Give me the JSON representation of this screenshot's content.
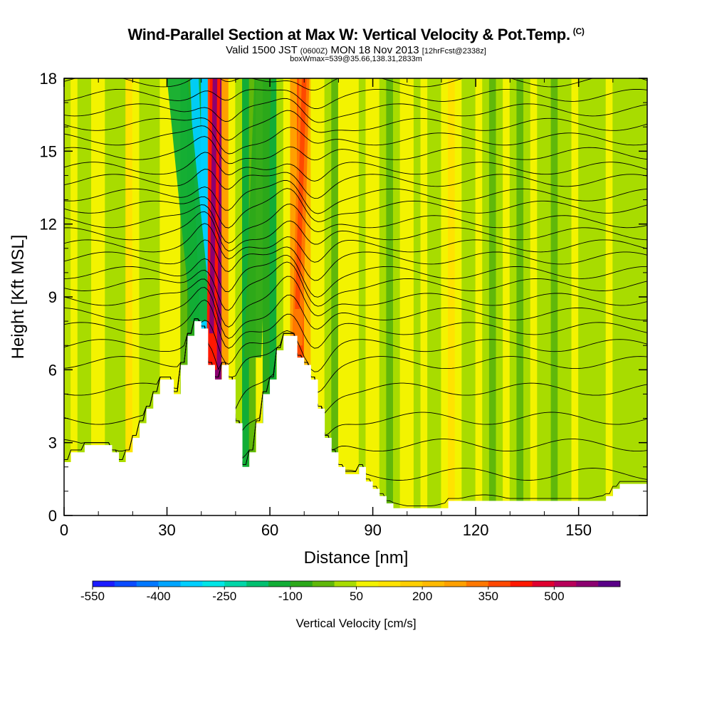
{
  "chart_data": {
    "type": "heatmap",
    "title": "Wind-Parallel Section at Max W: Vertical Velocity & Pot.Temp.",
    "copyright": "(C)",
    "subtitle_main_a": "Valid 1500 JST",
    "subtitle_utc": "(0600Z)",
    "subtitle_main_b": "MON 18 Nov 2013",
    "subtitle_fcst": "[12hrFcst@2338z]",
    "subtitle2": "boxWmax=539@35.66,138.31,2833m",
    "xlabel": "Distance [nm]",
    "ylabel": "Height [Kft MSL]",
    "xlim": [
      0,
      170
    ],
    "ylim": [
      0,
      18
    ],
    "xticks": [
      0,
      30,
      60,
      90,
      120,
      150
    ],
    "yticks": [
      0,
      3,
      6,
      9,
      12,
      15,
      18
    ],
    "colorbar": {
      "title": "Vertical Velocity [cm/s]",
      "labels": [
        "-550",
        "-400",
        "-250",
        "-100",
        "50",
        "200",
        "350",
        "500"
      ],
      "colors": [
        "#1b1bff",
        "#0a4bff",
        "#0078ff",
        "#00a5ff",
        "#00cfff",
        "#00e6e6",
        "#00d6a8",
        "#00c070",
        "#11ad36",
        "#2ba81a",
        "#60b80a",
        "#a8dc00",
        "#f3f300",
        "#ffe300",
        "#ffcf00",
        "#ffba00",
        "#ffa000",
        "#ff7800",
        "#ff4800",
        "#ff1800",
        "#e00030",
        "#b8005a",
        "#8c0070",
        "#5a0088"
      ]
    },
    "columns": [
      {
        "x": 0,
        "terrain": 2.2,
        "w": "#b6e000"
      },
      {
        "x": 2,
        "terrain": 2.6,
        "w": "#f3f300"
      },
      {
        "x": 4,
        "terrain": 2.6,
        "w": "#a8dc00"
      },
      {
        "x": 6,
        "terrain": 2.9,
        "w": "#a8dc00"
      },
      {
        "x": 8,
        "terrain": 2.9,
        "w": "#f3f300"
      },
      {
        "x": 10,
        "terrain": 2.9,
        "w": "#f3f300"
      },
      {
        "x": 12,
        "terrain": 2.9,
        "w": "#a8dc00"
      },
      {
        "x": 14,
        "terrain": 2.6,
        "w": "#a8dc00"
      },
      {
        "x": 16,
        "terrain": 2.2,
        "w": "#a8dc00"
      },
      {
        "x": 18,
        "terrain": 2.6,
        "w": "#ffe300"
      },
      {
        "x": 20,
        "terrain": 3.2,
        "w": "#f3f300"
      },
      {
        "x": 22,
        "terrain": 3.8,
        "w": "#a8dc00"
      },
      {
        "x": 24,
        "terrain": 4.4,
        "w": "#a8dc00"
      },
      {
        "x": 26,
        "terrain": 5.0,
        "w": "#a8dc00"
      },
      {
        "x": 28,
        "terrain": 5.6,
        "w": "#f3f300"
      },
      {
        "x": 30,
        "terrain": 5.6,
        "w": "#f3f300"
      },
      {
        "x": 32,
        "terrain": 5.0,
        "w": "#f3f300"
      },
      {
        "x": 34,
        "terrain": 6.2,
        "w": "#60b80a"
      },
      {
        "x": 36,
        "terrain": 7.4,
        "w": "#2ba81a"
      },
      {
        "x": 38,
        "terrain": 8.0,
        "w": "#11ad36"
      },
      {
        "x": 40,
        "terrain": 7.7,
        "w": "#00cfff"
      },
      {
        "x": 42,
        "terrain": 6.2,
        "w": "#ff4800"
      },
      {
        "x": 44,
        "terrain": 5.6,
        "w": "#8c0070"
      },
      {
        "x": 46,
        "terrain": 6.2,
        "w": "#ffa000"
      },
      {
        "x": 48,
        "terrain": 5.6,
        "w": "#f3f300"
      },
      {
        "x": 50,
        "terrain": 3.8,
        "w": "#a8dc00"
      },
      {
        "x": 52,
        "terrain": 2.0,
        "w": "#11ad36"
      },
      {
        "x": 54,
        "terrain": 2.6,
        "w": "#60b80a"
      },
      {
        "x": 56,
        "terrain": 3.8,
        "w": "#f3f300"
      },
      {
        "x": 58,
        "terrain": 5.0,
        "w": "#2ba81a"
      },
      {
        "x": 60,
        "terrain": 5.6,
        "w": "#11ad36"
      },
      {
        "x": 62,
        "terrain": 6.8,
        "w": "#a8dc00"
      },
      {
        "x": 64,
        "terrain": 7.4,
        "w": "#f3f300"
      },
      {
        "x": 66,
        "terrain": 7.4,
        "w": "#ffa000"
      },
      {
        "x": 68,
        "terrain": 6.5,
        "w": "#ff4800"
      },
      {
        "x": 70,
        "terrain": 6.2,
        "w": "#ffba00"
      },
      {
        "x": 72,
        "terrain": 5.6,
        "w": "#f3f300"
      },
      {
        "x": 74,
        "terrain": 4.4,
        "w": "#f3f300"
      },
      {
        "x": 76,
        "terrain": 3.2,
        "w": "#a8dc00"
      },
      {
        "x": 78,
        "terrain": 2.6,
        "w": "#60b80a"
      },
      {
        "x": 80,
        "terrain": 2.0,
        "w": "#f3f300"
      },
      {
        "x": 82,
        "terrain": 1.7,
        "w": "#f3f300"
      },
      {
        "x": 84,
        "terrain": 1.7,
        "w": "#f3f300"
      },
      {
        "x": 86,
        "terrain": 2.0,
        "w": "#a8dc00"
      },
      {
        "x": 88,
        "terrain": 1.4,
        "w": "#f3f300"
      },
      {
        "x": 90,
        "terrain": 1.1,
        "w": "#f3f300"
      },
      {
        "x": 92,
        "terrain": 0.8,
        "w": "#a8dc00"
      },
      {
        "x": 94,
        "terrain": 0.5,
        "w": "#60b80a"
      },
      {
        "x": 96,
        "terrain": 0.3,
        "w": "#a8dc00"
      },
      {
        "x": 98,
        "terrain": 0.3,
        "w": "#f3f300"
      },
      {
        "x": 100,
        "terrain": 0.3,
        "w": "#f3f300"
      },
      {
        "x": 102,
        "terrain": 0.3,
        "w": "#a8dc00"
      },
      {
        "x": 104,
        "terrain": 0.3,
        "w": "#f3f300"
      },
      {
        "x": 106,
        "terrain": 0.3,
        "w": "#a8dc00"
      },
      {
        "x": 108,
        "terrain": 0.3,
        "w": "#a8dc00"
      },
      {
        "x": 110,
        "terrain": 0.3,
        "w": "#f3f300"
      },
      {
        "x": 112,
        "terrain": 0.6,
        "w": "#ffe300"
      },
      {
        "x": 114,
        "terrain": 0.6,
        "w": "#f3f300"
      },
      {
        "x": 116,
        "terrain": 0.6,
        "w": "#a8dc00"
      },
      {
        "x": 118,
        "terrain": 0.6,
        "w": "#a8dc00"
      },
      {
        "x": 120,
        "terrain": 0.6,
        "w": "#f3f300"
      },
      {
        "x": 122,
        "terrain": 0.6,
        "w": "#a8dc00"
      },
      {
        "x": 124,
        "terrain": 0.6,
        "w": "#60b80a"
      },
      {
        "x": 126,
        "terrain": 0.6,
        "w": "#a8dc00"
      },
      {
        "x": 128,
        "terrain": 0.6,
        "w": "#f3f300"
      },
      {
        "x": 130,
        "terrain": 0.6,
        "w": "#a8dc00"
      },
      {
        "x": 132,
        "terrain": 0.6,
        "w": "#60b80a"
      },
      {
        "x": 134,
        "terrain": 0.6,
        "w": "#a8dc00"
      },
      {
        "x": 136,
        "terrain": 0.6,
        "w": "#f3f300"
      },
      {
        "x": 138,
        "terrain": 0.6,
        "w": "#a8dc00"
      },
      {
        "x": 140,
        "terrain": 0.6,
        "w": "#a8dc00"
      },
      {
        "x": 142,
        "terrain": 0.6,
        "w": "#60b80a"
      },
      {
        "x": 144,
        "terrain": 0.6,
        "w": "#a8dc00"
      },
      {
        "x": 146,
        "terrain": 0.6,
        "w": "#a8dc00"
      },
      {
        "x": 148,
        "terrain": 0.6,
        "w": "#f3f300"
      },
      {
        "x": 150,
        "terrain": 0.6,
        "w": "#a8dc00"
      },
      {
        "x": 152,
        "terrain": 0.6,
        "w": "#a8dc00"
      },
      {
        "x": 154,
        "terrain": 0.6,
        "w": "#a8dc00"
      },
      {
        "x": 156,
        "terrain": 0.6,
        "w": "#a8dc00"
      },
      {
        "x": 158,
        "terrain": 0.8,
        "w": "#f3f300"
      },
      {
        "x": 160,
        "terrain": 1.1,
        "w": "#a8dc00"
      },
      {
        "x": 162,
        "terrain": 1.3,
        "w": "#a8dc00"
      },
      {
        "x": 164,
        "terrain": 1.3,
        "w": "#a8dc00"
      },
      {
        "x": 166,
        "terrain": 1.3,
        "w": "#a8dc00"
      },
      {
        "x": 168,
        "terrain": 1.3,
        "w": "#a8dc00"
      }
    ],
    "updrafts": [
      {
        "x_top": 44,
        "x_bottom": 43,
        "y_bottom": 6.0,
        "width": 3,
        "color": "#ff1800",
        "core": "#8c0070"
      },
      {
        "x_top": 70,
        "x_bottom": 68,
        "y_bottom": 7.0,
        "width": 3,
        "color": "#ff7800",
        "core": "#ff4800"
      }
    ],
    "downdrafts": [
      {
        "x_top": 38,
        "x_bottom": 41,
        "y_bottom": 7.5,
        "width": 2.5,
        "color": "#00cfff"
      },
      {
        "x_top": 33,
        "x_bottom": 40,
        "y_bottom": 8,
        "width": 6,
        "color": "#11ad36"
      },
      {
        "x_top": 58,
        "x_bottom": 55,
        "y_bottom": 6.5,
        "width": 5,
        "color": "#2ba81a"
      }
    ],
    "theta_lines_y": [
      0.6,
      1.7,
      2.9,
      4.0,
      5.2,
      6.3,
      7.0,
      7.7,
      8.3,
      8.9,
      9.5,
      10.0,
      10.6,
      11.1,
      11.6,
      12.1,
      12.7,
      13.2,
      13.8,
      14.3,
      14.9,
      15.5,
      16.1,
      16.7,
      17.3,
      17.9
    ]
  }
}
